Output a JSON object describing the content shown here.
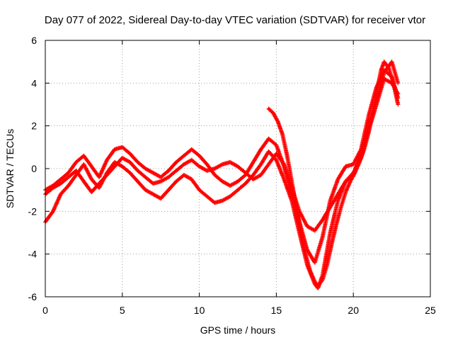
{
  "chart_data": {
    "type": "scatter",
    "title": "Day 077 of 2022, Sidereal Day-to-day VTEC variation (SDTVAR) for receiver vtor",
    "xlabel": "GPS time / hours",
    "ylabel": "SDTVAR / TECUs",
    "xlim": [
      0,
      25
    ],
    "ylim": [
      -6,
      6
    ],
    "x_ticks": [
      0,
      5,
      10,
      15,
      20,
      25
    ],
    "y_ticks": [
      -6,
      -4,
      -2,
      0,
      2,
      4,
      6
    ],
    "x_tick_labels": [
      "0",
      "5",
      "10",
      "15",
      "20",
      "25"
    ],
    "y_tick_labels": [
      "-6",
      "-4",
      "-2",
      "0",
      "2",
      "4",
      "6"
    ],
    "grid": true,
    "legend": "none",
    "marker": "plus",
    "color": "#ff0000",
    "series": [
      {
        "x": [
          0.0,
          0.5,
          1.0,
          1.5,
          2.0,
          2.5,
          3.0,
          3.5,
          4.0,
          4.5,
          5.0,
          5.5,
          6.0,
          6.5,
          7.0,
          7.5,
          8.0,
          8.5,
          9.0,
          9.5,
          10.0,
          10.5,
          11.0,
          11.5,
          12.0,
          12.5,
          13.0,
          13.5,
          14.0,
          14.5,
          15.0,
          15.5,
          16.0,
          16.5,
          17.0,
          17.5,
          17.7,
          18.0,
          18.5,
          19.0,
          19.5,
          20.0,
          20.5,
          21.0,
          21.5,
          22.0,
          22.5,
          22.9
        ],
        "y": [
          -2.5,
          -2.0,
          -1.2,
          -0.8,
          -0.3,
          0.2,
          -0.5,
          -0.9,
          -0.2,
          0.3,
          0.1,
          -0.2,
          -0.6,
          -1.0,
          -1.2,
          -1.4,
          -1.0,
          -0.6,
          -0.3,
          -0.5,
          -1.0,
          -1.3,
          -1.6,
          -1.5,
          -1.3,
          -1.0,
          -0.7,
          -0.3,
          0.2,
          0.8,
          0.4,
          -0.5,
          -1.5,
          -3.0,
          -4.5,
          -5.4,
          -5.6,
          -5.0,
          -3.0,
          -1.5,
          -0.6,
          -0.3,
          0.8,
          2.0,
          3.2,
          4.5,
          5.0,
          4.0
        ]
      },
      {
        "x": [
          0.0,
          0.5,
          1.0,
          1.5,
          2.0,
          2.5,
          3.0,
          3.5,
          4.0,
          4.5,
          5.0,
          5.5,
          6.0,
          6.5,
          7.0,
          7.5,
          8.0,
          8.5,
          9.0,
          9.5,
          10.0,
          10.5,
          11.0,
          11.5,
          12.0,
          12.5,
          13.0,
          13.5,
          14.0,
          14.5,
          15.0,
          15.5,
          16.0,
          16.5,
          17.0,
          17.5,
          18.0,
          18.5,
          19.0,
          19.5,
          20.0,
          20.5,
          21.0,
          21.5,
          22.0,
          22.5,
          22.9
        ],
        "y": [
          -1.0,
          -0.8,
          -0.5,
          -0.2,
          0.3,
          0.6,
          0.1,
          -0.4,
          0.4,
          0.9,
          1.0,
          0.7,
          0.3,
          0.0,
          -0.2,
          -0.4,
          -0.1,
          0.3,
          0.6,
          0.9,
          0.6,
          0.2,
          -0.3,
          -0.6,
          -0.8,
          -0.6,
          -0.3,
          0.3,
          0.9,
          1.4,
          1.1,
          0.1,
          -1.2,
          -2.5,
          -3.8,
          -4.4,
          -3.2,
          -1.5,
          -0.5,
          0.1,
          0.2,
          0.9,
          2.5,
          3.8,
          4.6,
          4.3,
          3.3
        ]
      },
      {
        "x": [
          0.0,
          0.5,
          1.0,
          1.5,
          2.0,
          2.5,
          3.0,
          3.5,
          4.0,
          4.5,
          5.0,
          5.5,
          6.0,
          6.5,
          7.0,
          7.5,
          8.0,
          8.5,
          9.0,
          9.5,
          10.0,
          10.5,
          11.0,
          11.5,
          12.0,
          12.5,
          13.0,
          13.5,
          14.0,
          14.5,
          15.0,
          15.5,
          16.0,
          16.5,
          17.0,
          17.5,
          18.0,
          18.5,
          19.0,
          19.5,
          20.0,
          20.5,
          21.0,
          21.5,
          22.0,
          22.5,
          22.9
        ],
        "y": [
          -1.2,
          -0.9,
          -0.7,
          -0.4,
          -0.1,
          -0.6,
          -1.1,
          -0.7,
          -0.3,
          0.1,
          0.5,
          0.3,
          -0.1,
          -0.4,
          -0.7,
          -0.6,
          -0.4,
          -0.1,
          0.2,
          0.4,
          0.1,
          -0.1,
          0.0,
          0.2,
          0.3,
          0.1,
          -0.2,
          -0.5,
          -0.3,
          0.2,
          0.7,
          0.2,
          -0.9,
          -2.0,
          -2.7,
          -2.9,
          -2.4,
          -1.8,
          -1.2,
          -0.6,
          -0.2,
          0.5,
          1.8,
          3.0,
          4.2,
          4.0,
          3.5
        ]
      },
      {
        "x": [
          14.5,
          14.8,
          15.1,
          15.4,
          15.7,
          16.0,
          16.3,
          16.6,
          16.9,
          17.2,
          17.5,
          17.7,
          18.0,
          18.3,
          18.6,
          18.9,
          19.2,
          19.5,
          19.8,
          20.1,
          20.4,
          20.7,
          21.0,
          21.3,
          21.6,
          21.8,
          22.0,
          22.3,
          22.6,
          22.9
        ],
        "y": [
          2.8,
          2.6,
          2.2,
          1.6,
          0.6,
          -0.6,
          -1.8,
          -3.0,
          -4.0,
          -4.8,
          -5.3,
          -5.5,
          -5.2,
          -4.5,
          -3.5,
          -2.6,
          -1.8,
          -1.1,
          -0.6,
          -0.2,
          0.3,
          0.9,
          1.7,
          2.8,
          3.9,
          4.6,
          5.0,
          4.7,
          4.0,
          3.0
        ]
      }
    ]
  }
}
